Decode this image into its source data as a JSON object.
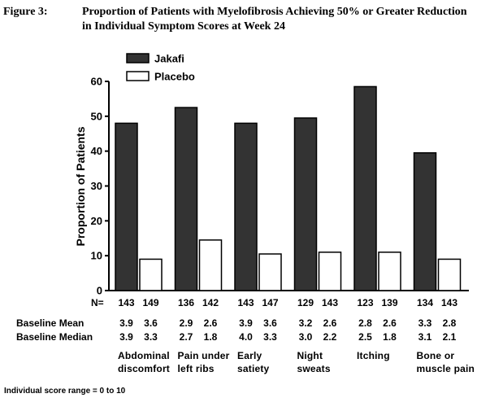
{
  "figure": {
    "number": "Figure 3:",
    "title": "Proportion of Patients with Myelofibrosis Achieving 50% or Greater Reduction in Individual Symptom Scores at Week 24"
  },
  "footnote": "Individual score range = 0 to 10",
  "row_labels": {
    "n": "N=",
    "baseline_mean": "Baseline Mean",
    "baseline_median": "Baseline Median"
  },
  "colors": {
    "jakafi": "#333333",
    "placebo": "#ffffff",
    "stroke": "#000000"
  },
  "chart_data": {
    "type": "bar",
    "title": "",
    "xlabel": "",
    "ylabel": "Proportion of Patients",
    "ylim": [
      0,
      60
    ],
    "yticks": [
      0,
      10,
      20,
      30,
      40,
      50,
      60
    ],
    "grid": false,
    "legend_position": "top-left",
    "categories": [
      [
        "Abdominal",
        "discomfort"
      ],
      [
        "Pain under",
        "left ribs"
      ],
      [
        "Early",
        "satiety"
      ],
      [
        "Night",
        "sweats"
      ],
      [
        "Itching"
      ],
      [
        "Bone or",
        "muscle pain"
      ]
    ],
    "series": [
      {
        "name": "Jakafi",
        "values": [
          48,
          52.5,
          48,
          49.5,
          58.5,
          39.5
        ],
        "n": [
          143,
          136,
          143,
          129,
          123,
          134
        ],
        "baseline_mean": [
          "3.9",
          "2.9",
          "3.9",
          "3.2",
          "2.8",
          "3.3"
        ],
        "baseline_median": [
          "3.9",
          "2.7",
          "4.0",
          "3.0",
          "2.5",
          "3.1"
        ]
      },
      {
        "name": "Placebo",
        "values": [
          9,
          14.5,
          10.5,
          11,
          11,
          9
        ],
        "n": [
          149,
          142,
          147,
          143,
          139,
          143
        ],
        "baseline_mean": [
          "3.6",
          "2.6",
          "3.6",
          "2.6",
          "2.6",
          "2.8"
        ],
        "baseline_median": [
          "3.3",
          "1.8",
          "3.3",
          "2.2",
          "1.8",
          "2.1"
        ]
      }
    ]
  }
}
